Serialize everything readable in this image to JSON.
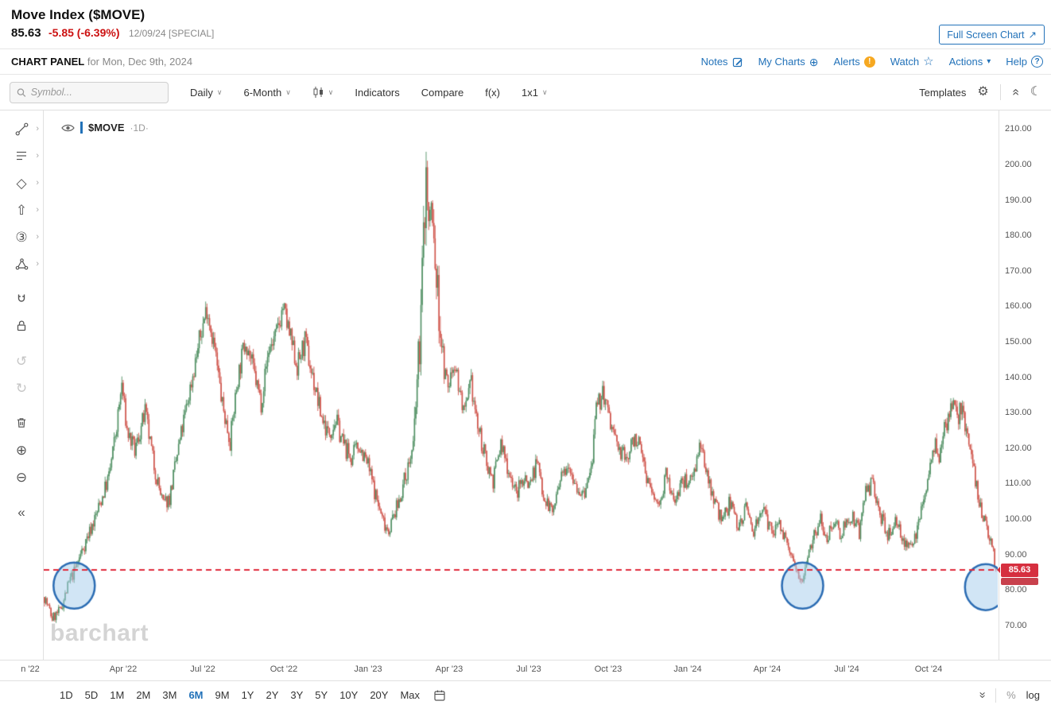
{
  "header": {
    "title": "Move Index ($MOVE)",
    "last_price": "85.63",
    "change": "-5.85 (-6.39%)",
    "quote_meta": "12/09/24 [SPECIAL]",
    "fullscreen_button": "Full Screen Chart",
    "panel_label": "CHART PANEL",
    "panel_date": "for Mon, Dec 9th, 2024",
    "links": [
      {
        "label": "Notes"
      },
      {
        "label": "My Charts"
      },
      {
        "label": "Alerts"
      },
      {
        "label": "Watch"
      },
      {
        "label": "Actions"
      },
      {
        "label": "Help"
      }
    ]
  },
  "toolbar": {
    "search_placeholder": "Symbol...",
    "frequency": "Daily",
    "range": "6-Month",
    "indicators": "Indicators",
    "compare": "Compare",
    "fx": "f(x)",
    "layout": "1x1",
    "templates": "Templates"
  },
  "sidebar": {
    "tools": [
      {
        "name": "trendline-tool",
        "submenu": true,
        "svg": "trend"
      },
      {
        "name": "annotation-tool",
        "submenu": true,
        "svg": "lines"
      },
      {
        "name": "shapes-tool",
        "submenu": true,
        "glyph": "◇"
      },
      {
        "name": "arrow-tool",
        "submenu": true,
        "glyph": "⇧"
      },
      {
        "name": "elliott-wave-tool",
        "submenu": true,
        "glyph": "③"
      },
      {
        "name": "pattern-tool",
        "submenu": true,
        "svg": "pattern"
      },
      {
        "name": "magnet-tool",
        "svg": "magnet",
        "gap": true
      },
      {
        "name": "lock-tool",
        "svg": "lock"
      },
      {
        "name": "undo-button",
        "glyph": "↺",
        "disabled": true,
        "gap": true
      },
      {
        "name": "redo-button",
        "glyph": "↻",
        "disabled": true
      },
      {
        "name": "delete-tool",
        "svg": "trash",
        "gap": true
      },
      {
        "name": "zoom-in-tool",
        "glyph": "⊕"
      },
      {
        "name": "zoom-out-tool",
        "glyph": "⊖"
      },
      {
        "name": "collapse-sidebar-button",
        "glyph": "«",
        "gap": true
      }
    ]
  },
  "chart": {
    "symbol_label": "$MOVE",
    "frequency_label": "·1D·",
    "watermark": "barchart",
    "price_badge": "85.63",
    "y_ticks": [
      "210.00",
      "200.00",
      "190.00",
      "180.00",
      "170.00",
      "160.00",
      "150.00",
      "140.00",
      "130.00",
      "120.00",
      "110.00",
      "100.00",
      "90.00",
      "80.00",
      "70.00"
    ],
    "x_ticks": [
      "n '22",
      "Apr '22",
      "Jul '22",
      "Oct '22",
      "Jan '23",
      "Apr '23",
      "Jul '23",
      "Oct '23",
      "Jan '24",
      "Apr '24",
      "Jul '24",
      "Oct '24"
    ]
  },
  "chart_data": {
    "type": "candlestick",
    "title": "Move Index ($MOVE) daily candles, Jan 2022 - Dec 9 2024",
    "symbol": "$MOVE",
    "frequency": "daily",
    "x_range": [
      "Jan 2022",
      "Dec 9 2024"
    ],
    "ylim": [
      65,
      212
    ],
    "last_close": 85.63,
    "dashed_support_line": 85.63,
    "colors": {
      "up": "#4f8f62",
      "down": "#cf544b",
      "support_line": "#e02b3c",
      "highlight_stroke": "#2b6cb3",
      "highlight_fill": "rgba(164,203,235,0.5)"
    },
    "anchors": [
      [
        0,
        78
      ],
      [
        6,
        72
      ],
      [
        12,
        74
      ],
      [
        20,
        83
      ],
      [
        23,
        85
      ],
      [
        30,
        92
      ],
      [
        40,
        101
      ],
      [
        50,
        112
      ],
      [
        56,
        126
      ],
      [
        60,
        138
      ],
      [
        64,
        125
      ],
      [
        70,
        119
      ],
      [
        78,
        130
      ],
      [
        85,
        115
      ],
      [
        92,
        104
      ],
      [
        97,
        106
      ],
      [
        105,
        122
      ],
      [
        112,
        135
      ],
      [
        120,
        150
      ],
      [
        126,
        160
      ],
      [
        132,
        148
      ],
      [
        138,
        132
      ],
      [
        144,
        122
      ],
      [
        150,
        140
      ],
      [
        156,
        151
      ],
      [
        162,
        142
      ],
      [
        168,
        133
      ],
      [
        174,
        148
      ],
      [
        180,
        152
      ],
      [
        185,
        160
      ],
      [
        190,
        152
      ],
      [
        196,
        143
      ],
      [
        202,
        150
      ],
      [
        208,
        140
      ],
      [
        214,
        130
      ],
      [
        220,
        124
      ],
      [
        226,
        128
      ],
      [
        232,
        121
      ],
      [
        238,
        117
      ],
      [
        244,
        121
      ],
      [
        251,
        115
      ],
      [
        256,
        108
      ],
      [
        262,
        100
      ],
      [
        267,
        97
      ],
      [
        274,
        104
      ],
      [
        280,
        112
      ],
      [
        286,
        120
      ],
      [
        291,
        150
      ],
      [
        296,
        198
      ],
      [
        298,
        182
      ],
      [
        300,
        188
      ],
      [
        303,
        172
      ],
      [
        306,
        158
      ],
      [
        310,
        142
      ],
      [
        313,
        137
      ],
      [
        318,
        145
      ],
      [
        322,
        136
      ],
      [
        326,
        129
      ],
      [
        331,
        138
      ],
      [
        336,
        126
      ],
      [
        342,
        117
      ],
      [
        348,
        111
      ],
      [
        354,
        121
      ],
      [
        360,
        114
      ],
      [
        366,
        107
      ],
      [
        372,
        112
      ],
      [
        376,
        110
      ],
      [
        382,
        116
      ],
      [
        388,
        106
      ],
      [
        394,
        102
      ],
      [
        400,
        110
      ],
      [
        406,
        117
      ],
      [
        412,
        110
      ],
      [
        418,
        106
      ],
      [
        424,
        114
      ],
      [
        428,
        130
      ],
      [
        433,
        136
      ],
      [
        439,
        127
      ],
      [
        446,
        119
      ],
      [
        452,
        117
      ],
      [
        458,
        124
      ],
      [
        464,
        117
      ],
      [
        470,
        108
      ],
      [
        476,
        104
      ],
      [
        482,
        112
      ],
      [
        488,
        105
      ],
      [
        494,
        110
      ],
      [
        502,
        112
      ],
      [
        508,
        120
      ],
      [
        514,
        113
      ],
      [
        520,
        105
      ],
      [
        526,
        99
      ],
      [
        532,
        105
      ],
      [
        538,
        98
      ],
      [
        544,
        103
      ],
      [
        550,
        97
      ],
      [
        556,
        103
      ],
      [
        562,
        98
      ],
      [
        565,
        96
      ],
      [
        570,
        100
      ],
      [
        575,
        93
      ],
      [
        580,
        88
      ],
      [
        585,
        85
      ],
      [
        588,
        83
      ],
      [
        591,
        89
      ],
      [
        596,
        95
      ],
      [
        602,
        100
      ],
      [
        607,
        95
      ],
      [
        612,
        100
      ],
      [
        617,
        96
      ],
      [
        622,
        99
      ],
      [
        627,
        101
      ],
      [
        632,
        96
      ],
      [
        637,
        107
      ],
      [
        642,
        110
      ],
      [
        648,
        102
      ],
      [
        654,
        95
      ],
      [
        660,
        100
      ],
      [
        666,
        94
      ],
      [
        672,
        91
      ],
      [
        677,
        98
      ],
      [
        682,
        105
      ],
      [
        686,
        114
      ],
      [
        690,
        121
      ],
      [
        694,
        118
      ],
      [
        698,
        125
      ],
      [
        702,
        130
      ],
      [
        705,
        134
      ],
      [
        708,
        128
      ],
      [
        711,
        132
      ],
      [
        714,
        127
      ],
      [
        718,
        118
      ],
      [
        722,
        111
      ],
      [
        726,
        104
      ],
      [
        730,
        98
      ],
      [
        733,
        94
      ],
      [
        736,
        90
      ],
      [
        738,
        86
      ]
    ],
    "highlights": [
      {
        "day": 23,
        "price": 81.2
      },
      {
        "day": 588,
        "price": 81.2
      },
      {
        "day": 730,
        "price": 80.8
      }
    ]
  },
  "bottom": {
    "ranges": [
      "1D",
      "5D",
      "1M",
      "2M",
      "3M",
      "6M",
      "9M",
      "1Y",
      "2Y",
      "3Y",
      "5Y",
      "10Y",
      "20Y",
      "Max"
    ],
    "selected_range": "6M",
    "percent_label": "%",
    "log_label": "log"
  }
}
